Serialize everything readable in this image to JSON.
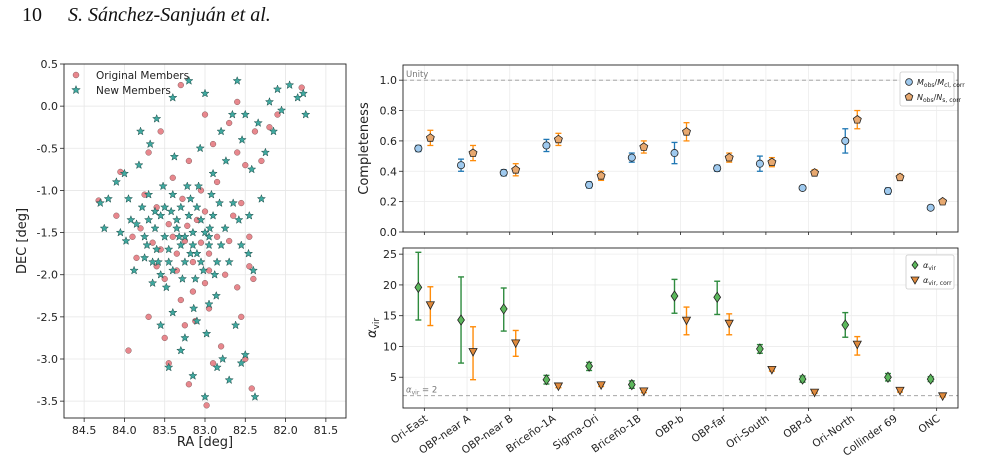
{
  "header": {
    "page_number": "10",
    "authors": "S. Sánchez-Sanjuán et al."
  },
  "chart_data": [
    {
      "type": "scatter",
      "xlabel": "RA [deg]",
      "ylabel": "DEC [deg]",
      "xlim": [
        84.75,
        81.25
      ],
      "ylim": [
        -3.7,
        0.5
      ],
      "xticks": [
        "84.5",
        "84.0",
        "83.5",
        "83.0",
        "82.5",
        "82.0",
        "81.5"
      ],
      "yticks": [
        "0.5",
        "0.0",
        "-0.5",
        "-1.0",
        "-1.5",
        "-2.0",
        "-2.5",
        "-3.0",
        "-3.5"
      ],
      "legend": {
        "position": "top-left",
        "entries": [
          "Original Members",
          "New Members"
        ]
      },
      "series": [
        {
          "name": "Original Members",
          "marker": "circle",
          "color": "#e8878d",
          "points": [
            [
              84.32,
              -1.12
            ],
            [
              84.05,
              -0.78
            ],
            [
              83.9,
              -1.55
            ],
            [
              83.85,
              -1.8
            ],
            [
              83.7,
              -0.55
            ],
            [
              83.6,
              -1.2
            ],
            [
              83.55,
              -1.7
            ],
            [
              83.5,
              -2.05
            ],
            [
              83.45,
              -1.4
            ],
            [
              83.4,
              -0.85
            ],
            [
              83.35,
              -1.95
            ],
            [
              83.3,
              -2.3
            ],
            [
              83.28,
              -1.1
            ],
            [
              83.25,
              -1.6
            ],
            [
              83.2,
              -0.65
            ],
            [
              83.15,
              -1.85
            ],
            [
              83.12,
              -2.55
            ],
            [
              83.1,
              -1.35
            ],
            [
              83.05,
              -1.0
            ],
            [
              83.0,
              -2.1
            ],
            [
              82.98,
              -3.55
            ],
            [
              82.95,
              -1.75
            ],
            [
              82.9,
              -0.45
            ],
            [
              82.85,
              -1.55
            ],
            [
              82.8,
              -2.85
            ],
            [
              82.75,
              -2.0
            ],
            [
              82.7,
              -0.2
            ],
            [
              82.65,
              -1.3
            ],
            [
              82.6,
              -0.55
            ],
            [
              82.55,
              -2.5
            ],
            [
              82.5,
              -0.7
            ],
            [
              82.45,
              -1.9
            ],
            [
              82.42,
              -3.35
            ],
            [
              82.38,
              -0.3
            ],
            [
              82.3,
              -0.65
            ],
            [
              82.2,
              -0.25
            ],
            [
              82.1,
              -0.1
            ],
            [
              81.8,
              0.22
            ],
            [
              83.95,
              -2.9
            ],
            [
              83.7,
              -2.5
            ],
            [
              83.45,
              -3.05
            ],
            [
              83.2,
              -3.3
            ],
            [
              82.9,
              -3.05
            ],
            [
              82.5,
              -3.0
            ],
            [
              83.3,
              0.25
            ],
            [
              83.0,
              -0.1
            ],
            [
              82.6,
              0.05
            ],
            [
              83.55,
              -0.3
            ],
            [
              83.75,
              -1.05
            ],
            [
              84.1,
              -1.3
            ],
            [
              83.4,
              -1.55
            ],
            [
              83.22,
              -1.42
            ],
            [
              83.05,
              -1.62
            ],
            [
              82.95,
              -1.95
            ],
            [
              83.15,
              -2.2
            ],
            [
              83.35,
              -1.75
            ],
            [
              82.7,
              -1.6
            ],
            [
              82.55,
              -1.15
            ],
            [
              82.45,
              -1.55
            ],
            [
              83.6,
              -1.9
            ],
            [
              83.8,
              -1.45
            ],
            [
              83.65,
              -1.62
            ],
            [
              83.0,
              -1.25
            ],
            [
              82.85,
              -0.9
            ],
            [
              82.95,
              -2.4
            ],
            [
              82.6,
              -2.15
            ],
            [
              83.25,
              -2.6
            ],
            [
              83.5,
              -2.75
            ],
            [
              82.4,
              -2.05
            ]
          ]
        },
        {
          "name": "New Members",
          "marker": "star",
          "color": "#3fa89f",
          "points": [
            [
              84.3,
              -1.15
            ],
            [
              84.25,
              -1.45
            ],
            [
              84.2,
              -1.1
            ],
            [
              84.0,
              -0.8
            ],
            [
              83.98,
              -1.6
            ],
            [
              83.92,
              -1.35
            ],
            [
              83.88,
              -1.95
            ],
            [
              83.82,
              -0.7
            ],
            [
              83.78,
              -1.2
            ],
            [
              83.72,
              -1.65
            ],
            [
              83.68,
              -0.45
            ],
            [
              83.62,
              -1.45
            ],
            [
              83.58,
              -1.85
            ],
            [
              83.52,
              -0.95
            ],
            [
              83.48,
              -2.15
            ],
            [
              83.42,
              -1.25
            ],
            [
              83.38,
              -0.6
            ],
            [
              83.32,
              -1.55
            ],
            [
              83.28,
              -2.05
            ],
            [
              83.22,
              -0.95
            ],
            [
              83.18,
              -1.75
            ],
            [
              83.14,
              -2.4
            ],
            [
              83.1,
              -1.2
            ],
            [
              83.06,
              -0.5
            ],
            [
              83.02,
              -1.95
            ],
            [
              82.98,
              -2.7
            ],
            [
              82.94,
              -1.45
            ],
            [
              82.9,
              -0.8
            ],
            [
              82.86,
              -2.25
            ],
            [
              82.82,
              -1.15
            ],
            [
              82.78,
              -3.0
            ],
            [
              82.74,
              -0.65
            ],
            [
              82.7,
              -1.85
            ],
            [
              82.66,
              -0.1
            ],
            [
              82.62,
              -2.6
            ],
            [
              82.58,
              -1.35
            ],
            [
              82.54,
              -0.4
            ],
            [
              82.5,
              -2.95
            ],
            [
              82.46,
              -1.75
            ],
            [
              82.42,
              -0.75
            ],
            [
              82.38,
              -3.45
            ],
            [
              82.34,
              -0.2
            ],
            [
              82.3,
              -1.1
            ],
            [
              82.25,
              -0.55
            ],
            [
              82.2,
              0.05
            ],
            [
              82.15,
              -0.3
            ],
            [
              82.1,
              0.2
            ],
            [
              82.05,
              -0.05
            ],
            [
              81.95,
              0.25
            ],
            [
              81.85,
              0.1
            ],
            [
              81.78,
              0.15
            ],
            [
              81.75,
              -0.1
            ],
            [
              83.45,
              -3.1
            ],
            [
              83.3,
              -2.9
            ],
            [
              83.15,
              -3.2
            ],
            [
              83.0,
              -3.45
            ],
            [
              82.85,
              -3.1
            ],
            [
              82.7,
              -3.25
            ],
            [
              82.55,
              -3.05
            ],
            [
              83.55,
              -2.6
            ],
            [
              83.4,
              -2.45
            ],
            [
              83.25,
              -2.75
            ],
            [
              83.1,
              -2.55
            ],
            [
              82.95,
              -2.35
            ],
            [
              83.6,
              -0.15
            ],
            [
              83.4,
              0.1
            ],
            [
              83.2,
              0.3
            ],
            [
              83.0,
              0.15
            ],
            [
              82.8,
              -0.3
            ],
            [
              82.6,
              0.3
            ],
            [
              82.5,
              -0.1
            ],
            [
              83.8,
              -0.3
            ],
            [
              84.1,
              -0.9
            ],
            [
              84.05,
              -1.5
            ],
            [
              83.95,
              -1.1
            ],
            [
              83.85,
              -1.4
            ],
            [
              83.75,
              -1.8
            ],
            [
              83.65,
              -2.1
            ],
            [
              83.55,
              -1.3
            ],
            [
              83.45,
              -1.7
            ],
            [
              83.35,
              -1.35
            ],
            [
              83.25,
              -1.85
            ],
            [
              83.15,
              -1.5
            ],
            [
              83.05,
              -1.35
            ],
            [
              82.95,
              -1.65
            ],
            [
              82.85,
              -1.85
            ],
            [
              82.75,
              -1.45
            ],
            [
              82.65,
              -1.15
            ],
            [
              82.55,
              -1.65
            ],
            [
              82.45,
              -1.3
            ],
            [
              82.4,
              -1.95
            ],
            [
              83.5,
              -1.55
            ],
            [
              83.4,
              -1.95
            ],
            [
              83.3,
              -1.65
            ],
            [
              83.2,
              -1.3
            ],
            [
              83.1,
              -1.75
            ],
            [
              83.0,
              -1.5
            ],
            [
              82.9,
              -1.3
            ],
            [
              83.6,
              -1.7
            ],
            [
              83.7,
              -1.35
            ],
            [
              83.75,
              -1.55
            ],
            [
              83.35,
              -1.45
            ],
            [
              83.25,
              -1.55
            ],
            [
              83.15,
              -1.65
            ],
            [
              83.05,
              -1.85
            ],
            [
              82.95,
              -1.55
            ],
            [
              83.45,
              -1.85
            ],
            [
              83.55,
              -2.0
            ],
            [
              83.65,
              -1.85
            ],
            [
              83.12,
              -2.05
            ],
            [
              82.88,
              -2.0
            ],
            [
              82.8,
              -1.65
            ],
            [
              83.3,
              -1.2
            ],
            [
              83.18,
              -1.1
            ],
            [
              83.08,
              -0.95
            ],
            [
              82.92,
              -1.05
            ],
            [
              83.4,
              -1.05
            ],
            [
              83.5,
              -1.2
            ],
            [
              83.62,
              -1.25
            ],
            [
              83.7,
              -1.05
            ]
          ]
        }
      ]
    },
    {
      "type": "scatter",
      "ylabel": "Completeness",
      "ylim": [
        0.0,
        1.1
      ],
      "yticks": [
        "0.0",
        "0.2",
        "0.4",
        "0.6",
        "0.8",
        "1.0"
      ],
      "reference_line": {
        "y": 1.0,
        "label": "Unity"
      },
      "legend": {
        "position": "top-right",
        "entries": [
          "Mobs/Mcl,corr",
          "Nobs/Ns,corr"
        ]
      },
      "categories": [
        "Ori-East",
        "OBP-near A",
        "OBP-near B",
        "Briceño-1A",
        "Sigma-Ori",
        "Briceño-1B",
        "OBP-b",
        "OBP-far",
        "Ori-South",
        "OBP-d",
        "Ori-North",
        "Collinder 69",
        "ONC"
      ],
      "series": [
        {
          "name": "Mobs/Mcl,corr",
          "marker": "circle",
          "color": "#1f77b4",
          "fill": "#9ec9ee",
          "values": [
            0.55,
            0.44,
            0.39,
            0.57,
            0.31,
            0.49,
            0.52,
            0.42,
            0.45,
            0.29,
            0.6,
            0.27,
            0.16
          ],
          "err": [
            0.02,
            0.04,
            0.02,
            0.04,
            0.02,
            0.03,
            0.07,
            0.02,
            0.05,
            0.01,
            0.08,
            0.02,
            0.01
          ]
        },
        {
          "name": "Nobs/Ns,corr",
          "marker": "pentagon",
          "color": "#ff8c0a",
          "fill": "#e7a86f",
          "values": [
            0.62,
            0.52,
            0.41,
            0.61,
            0.37,
            0.56,
            0.66,
            0.49,
            0.46,
            0.39,
            0.74,
            0.36,
            0.2
          ],
          "err": [
            0.05,
            0.05,
            0.04,
            0.04,
            0.03,
            0.04,
            0.06,
            0.03,
            0.03,
            0.02,
            0.06,
            0.02,
            0.01
          ]
        }
      ]
    },
    {
      "type": "scatter",
      "ylabel": "α_vir",
      "ylim": [
        0,
        26
      ],
      "yticks": [
        "5",
        "10",
        "15",
        "20",
        "25"
      ],
      "reference_line": {
        "y": 2,
        "label": "α_vir = 2"
      },
      "legend": {
        "position": "top-right",
        "entries": [
          "α_vir",
          "α_vir,corr"
        ]
      },
      "categories": [
        "Ori-East",
        "OBP-near A",
        "OBP-near B",
        "Briceño-1A",
        "Sigma-Ori",
        "Briceño-1B",
        "OBP-b",
        "OBP-far",
        "Ori-South",
        "OBP-d",
        "Ori-North",
        "Collinder 69",
        "ONC"
      ],
      "series": [
        {
          "name": "α_vir",
          "marker": "diamond",
          "color": "#2e8b3e",
          "fill": "#5cb85c",
          "values": [
            19.6,
            14.3,
            16.1,
            4.6,
            6.8,
            3.8,
            18.2,
            18.0,
            9.6,
            4.7,
            13.5,
            5.0,
            4.7
          ],
          "err_low": [
            5.3,
            7.0,
            3.6,
            0.7,
            0.7,
            0.6,
            2.8,
            2.8,
            0.7,
            0.5,
            2.0,
            0.6,
            0.4
          ],
          "err_high": [
            5.7,
            7.0,
            3.4,
            0.7,
            0.6,
            0.6,
            2.7,
            2.6,
            0.7,
            0.5,
            2.0,
            0.6,
            0.4
          ]
        },
        {
          "name": "α_vir,corr",
          "marker": "triangle-down",
          "color": "#ff8c0a",
          "fill": "#e08a3c",
          "values": [
            16.7,
            9.1,
            10.5,
            3.5,
            3.7,
            2.7,
            14.2,
            13.7,
            6.2,
            2.5,
            10.3,
            2.8,
            1.9
          ],
          "err_low": [
            3.3,
            4.5,
            2.1,
            0.2,
            0.2,
            0.2,
            2.3,
            1.8,
            0.2,
            0.1,
            1.7,
            0.2,
            0.1
          ],
          "err_high": [
            3.0,
            4.1,
            2.1,
            0.2,
            0.2,
            0.2,
            2.2,
            1.6,
            0.2,
            0.1,
            1.3,
            0.2,
            0.1
          ]
        }
      ]
    }
  ]
}
